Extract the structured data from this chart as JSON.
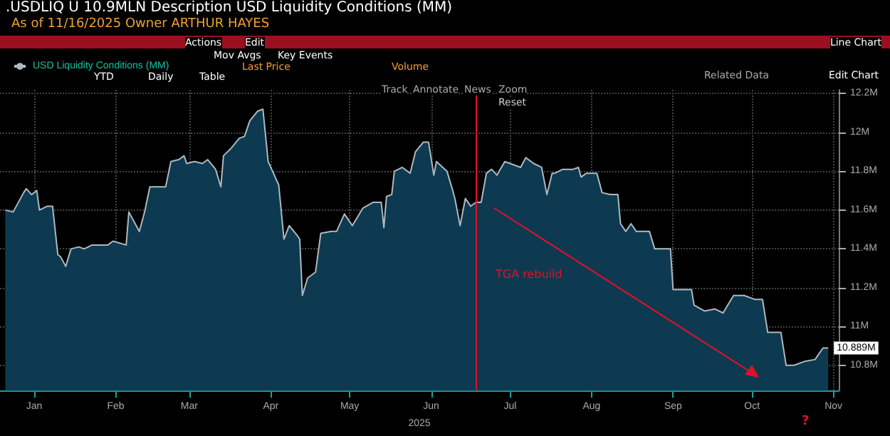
{
  "chart_data": {
    "type": "area",
    "title": ".USDLIQ U 10.9MLN Description USD Liquidity Conditions (MM)",
    "subtitle": "As of 11/16/2025 Owner ARTHUR HAYES",
    "xlabel": "2025",
    "legend": "top left",
    "grid": true,
    "marker": "none",
    "xlim": [
      "2025-01-02",
      "2025-11-17"
    ],
    "xticks": [
      {
        "value": "2025-01-15",
        "label": "Jan"
      },
      {
        "value": "2025-02-15",
        "label": "Feb"
      },
      {
        "value": "2025-03-15",
        "label": "Mar"
      },
      {
        "value": "2025-04-15",
        "label": "Apr"
      },
      {
        "value": "2025-05-15",
        "label": "May"
      },
      {
        "value": "2025-06-15",
        "label": "Jun"
      },
      {
        "value": "2025-07-15",
        "label": "Jul"
      },
      {
        "value": "2025-08-15",
        "label": "Aug"
      },
      {
        "value": "2025-09-15",
        "label": "Sep"
      },
      {
        "value": "2025-10-15",
        "label": "Oct"
      },
      {
        "value": "2025-11-15",
        "label": "Nov"
      }
    ],
    "ylim": [
      10.67,
      12.22
    ],
    "yticks": [
      {
        "value": 10.8,
        "label": "10.8M"
      },
      {
        "value": 11,
        "label": "11M"
      },
      {
        "value": 11.2,
        "label": "11.2M"
      },
      {
        "value": 11.4,
        "label": "11.4M"
      },
      {
        "value": 11.6,
        "label": "11.6M"
      },
      {
        "value": 11.8,
        "label": "11.8M"
      },
      {
        "value": 12,
        "label": "12M"
      },
      {
        "value": 12.2,
        "label": "12.2M"
      }
    ],
    "ref_lines": [
      {
        "axis": "x",
        "value": "2025-07-02",
        "color": "#e0102a"
      }
    ],
    "annotations": [
      "Actions",
      "Edit",
      "Line Chart",
      "Mov Avgs",
      "Key Events",
      "Last Price",
      "Volume",
      "YTD",
      "Daily",
      "Table",
      "Related Data",
      "Edit Chart",
      "Track",
      "Annotate",
      "News",
      "Zoom",
      "Reset",
      "TGA rebuild",
      "?"
    ],
    "series": [
      {
        "name": "USD Liquidity Conditions (MM)",
        "color": "#aeb8c0",
        "x": [
          "2025-01-04",
          "2025-01-07",
          "2025-01-11",
          "2025-01-12",
          "2025-01-14",
          "2025-01-16",
          "2025-01-17",
          "2025-01-20",
          "2025-01-22",
          "2025-01-24",
          "2025-01-25",
          "2025-01-27",
          "2025-01-29",
          "2025-02-01",
          "2025-02-03",
          "2025-02-06",
          "2025-02-12",
          "2025-02-14",
          "2025-02-19",
          "2025-02-20",
          "2025-02-24",
          "2025-02-26",
          "2025-02-28",
          "2025-03-06",
          "2025-03-08",
          "2025-03-11",
          "2025-03-13",
          "2025-03-14",
          "2025-03-17",
          "2025-03-20",
          "2025-03-22",
          "2025-03-25",
          "2025-03-27",
          "2025-03-28",
          "2025-03-31",
          "2025-04-03",
          "2025-04-05",
          "2025-04-07",
          "2025-04-10",
          "2025-04-12",
          "2025-04-14",
          "2025-04-15",
          "2025-04-18",
          "2025-04-20",
          "2025-04-22",
          "2025-04-25",
          "2025-04-26",
          "2025-04-27",
          "2025-04-29",
          "2025-05-02",
          "2025-05-04",
          "2025-05-08",
          "2025-05-10",
          "2025-05-13",
          "2025-05-16",
          "2025-05-20",
          "2025-05-24",
          "2025-05-27",
          "2025-05-28",
          "2025-05-29",
          "2025-05-31",
          "2025-06-01",
          "2025-06-04",
          "2025-06-07",
          "2025-06-09",
          "2025-06-12",
          "2025-06-14",
          "2025-06-16",
          "2025-06-17",
          "2025-06-21",
          "2025-06-23",
          "2025-06-24",
          "2025-06-26",
          "2025-06-28",
          "2025-06-30",
          "2025-07-02",
          "2025-07-04",
          "2025-07-06",
          "2025-07-08",
          "2025-07-10",
          "2025-07-13",
          "2025-07-15",
          "2025-07-19",
          "2025-07-21",
          "2025-07-24",
          "2025-07-27",
          "2025-07-29",
          "2025-07-31",
          "2025-08-01",
          "2025-08-04",
          "2025-08-08",
          "2025-08-10",
          "2025-08-11",
          "2025-08-13",
          "2025-08-17",
          "2025-08-19",
          "2025-08-22",
          "2025-08-25",
          "2025-08-26",
          "2025-08-28",
          "2025-08-30",
          "2025-09-01",
          "2025-09-06",
          "2025-09-08",
          "2025-09-14",
          "2025-09-15",
          "2025-09-22",
          "2025-09-23",
          "2025-09-27",
          "2025-10-01",
          "2025-10-04",
          "2025-10-08",
          "2025-10-12",
          "2025-10-16",
          "2025-10-19",
          "2025-10-21",
          "2025-10-26",
          "2025-10-28",
          "2025-10-31",
          "2025-11-04",
          "2025-11-08",
          "2025-11-09",
          "2025-11-11",
          "2025-11-13"
        ],
        "values": [
          11.6,
          11.59,
          11.69,
          11.71,
          11.68,
          11.7,
          11.6,
          11.62,
          11.62,
          11.37,
          11.36,
          11.31,
          11.4,
          11.41,
          11.4,
          11.42,
          11.42,
          11.44,
          11.42,
          11.59,
          11.49,
          11.59,
          11.72,
          11.72,
          11.85,
          11.86,
          11.88,
          11.84,
          11.85,
          11.84,
          11.86,
          11.81,
          11.72,
          11.88,
          11.92,
          11.97,
          11.98,
          12.06,
          12.11,
          12.12,
          11.85,
          11.82,
          11.73,
          11.45,
          11.52,
          11.47,
          11.45,
          11.16,
          11.25,
          11.28,
          11.48,
          11.49,
          11.49,
          11.58,
          11.52,
          11.61,
          11.64,
          11.64,
          11.51,
          11.67,
          11.68,
          11.8,
          11.82,
          11.79,
          11.9,
          11.95,
          11.95,
          11.78,
          11.85,
          11.8,
          11.71,
          11.66,
          11.52,
          11.66,
          11.62,
          11.64,
          11.64,
          11.79,
          11.81,
          11.78,
          11.85,
          11.84,
          11.82,
          11.87,
          11.84,
          11.82,
          11.68,
          11.79,
          11.79,
          11.81,
          11.81,
          11.82,
          11.77,
          11.79,
          11.79,
          11.69,
          11.68,
          11.68,
          11.53,
          11.49,
          11.53,
          11.49,
          11.49,
          11.4,
          11.4,
          11.19,
          11.19,
          11.11,
          11.08,
          11.09,
          11.07,
          11.16,
          11.16,
          11.14,
          11.14,
          10.97,
          10.97,
          10.8,
          10.8,
          10.82,
          10.83,
          10.85,
          10.889,
          10.889
        ],
        "value_labels": [
          null,
          null,
          null,
          null,
          null,
          null,
          null,
          null,
          null,
          null,
          null,
          null,
          null,
          null,
          null,
          null,
          null,
          null,
          null,
          null,
          null,
          null,
          null,
          null,
          null,
          null,
          null,
          null,
          null,
          null,
          null,
          null,
          null,
          null,
          null,
          null,
          null,
          null,
          null,
          null,
          null,
          null,
          null,
          null,
          null,
          null,
          null,
          null,
          null,
          null,
          null,
          null,
          null,
          null,
          null,
          null,
          null,
          null,
          null,
          null,
          null,
          null,
          null,
          null,
          null,
          null,
          null,
          null,
          null,
          null,
          null,
          null,
          null,
          null,
          null,
          null,
          null,
          null,
          null,
          null,
          null,
          null,
          null,
          null,
          null,
          null,
          null,
          null,
          null,
          null,
          null,
          null,
          null,
          null,
          null,
          null,
          null,
          null,
          null,
          null,
          null,
          null,
          null,
          null,
          null,
          null,
          null,
          null,
          null,
          null,
          null,
          null,
          null,
          null,
          null,
          null,
          null,
          null,
          null,
          null,
          null,
          null,
          null,
          "10.889M"
        ]
      }
    ]
  }
}
